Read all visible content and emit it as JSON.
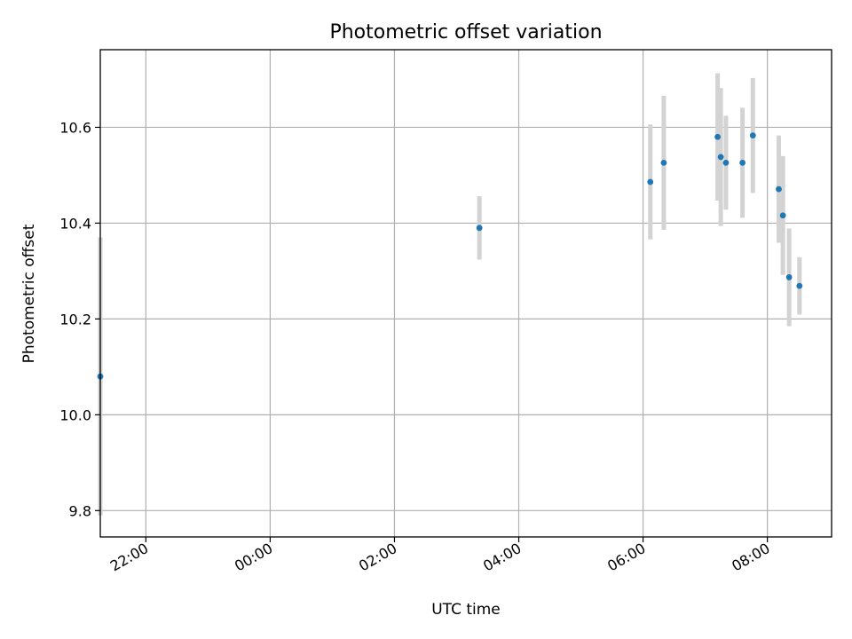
{
  "chart_data": {
    "type": "scatter",
    "title": "Photometric offset variation",
    "xlabel": "UTC time",
    "ylabel": "Photometric offset",
    "x_axis_type": "time",
    "xlim": [
      "21:16",
      "09:02"
    ],
    "ylim": [
      9.745,
      10.762
    ],
    "x_ticks": [
      "22:00",
      "00:00",
      "02:00",
      "04:00",
      "06:00",
      "08:00"
    ],
    "y_ticks": [
      9.8,
      10.0,
      10.2,
      10.4,
      10.6
    ],
    "y_tick_labels": [
      "9.8",
      "10.0",
      "10.2",
      "10.4",
      "10.6"
    ],
    "grid": true,
    "marker_color": "#1f77b4",
    "errorbar_color": "#d3d3d3",
    "points": [
      {
        "time": "21:16",
        "value": 10.08,
        "err": 0.29
      },
      {
        "time": "03:22",
        "value": 10.39,
        "err": 0.066
      },
      {
        "time": "06:07",
        "value": 10.486,
        "err": 0.12
      },
      {
        "time": "06:20",
        "value": 10.526,
        "err": 0.14
      },
      {
        "time": "07:12",
        "value": 10.58,
        "err": 0.133
      },
      {
        "time": "07:15",
        "value": 10.538,
        "err": 0.144
      },
      {
        "time": "07:20",
        "value": 10.526,
        "err": 0.098
      },
      {
        "time": "07:36",
        "value": 10.526,
        "err": 0.115
      },
      {
        "time": "07:46",
        "value": 10.583,
        "err": 0.12
      },
      {
        "time": "08:11",
        "value": 10.471,
        "err": 0.112
      },
      {
        "time": "08:15",
        "value": 10.416,
        "err": 0.124
      },
      {
        "time": "08:21",
        "value": 10.287,
        "err": 0.102
      },
      {
        "time": "08:31",
        "value": 10.269,
        "err": 0.06
      }
    ]
  }
}
